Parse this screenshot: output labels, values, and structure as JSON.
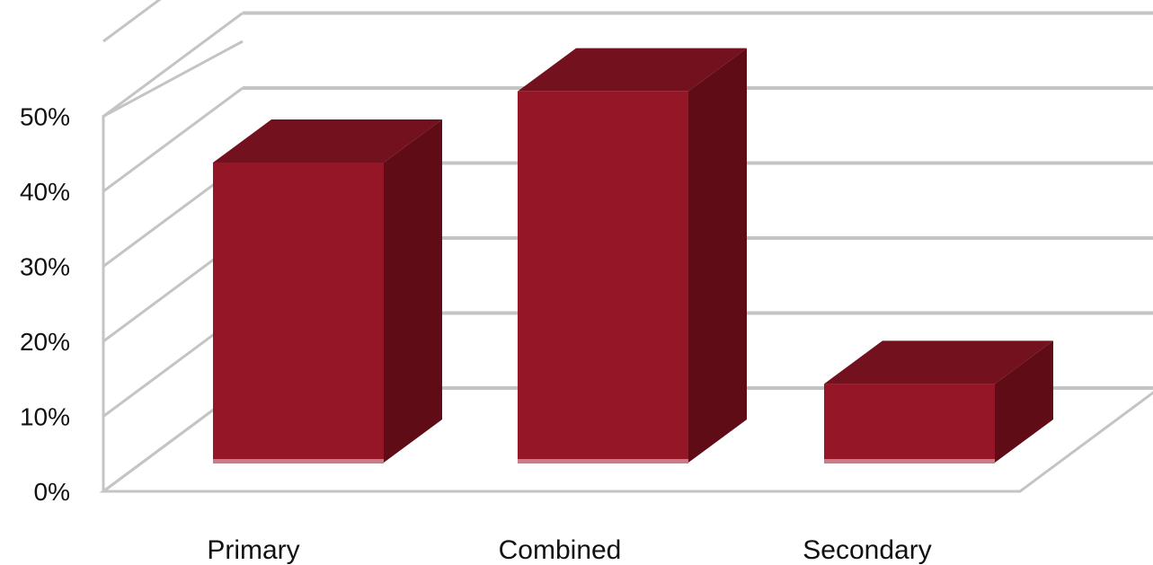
{
  "chart_data": {
    "type": "bar",
    "style": "3d-column",
    "categories": [
      "Primary",
      "Combined",
      "Secondary"
    ],
    "values": [
      40,
      49.5,
      10.5
    ],
    "value_unit": "%",
    "title": "",
    "xlabel": "",
    "ylabel": "",
    "ylim": [
      0,
      50
    ],
    "yticks": [
      "0%",
      "10%",
      "20%",
      "30%",
      "40%",
      "50%"
    ],
    "grid": true,
    "legend": "none",
    "colors": {
      "bar_front": "#951626",
      "bar_top": "#74111e",
      "bar_side": "#600c17",
      "bar_bottom_edge": "#c97c86",
      "grid": "#c4c4c4"
    }
  }
}
